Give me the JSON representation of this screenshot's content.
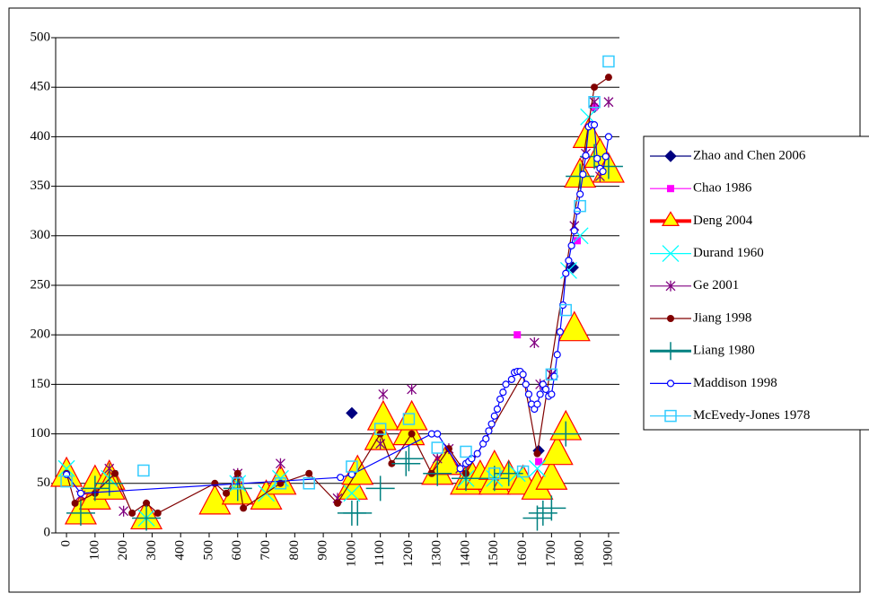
{
  "chart_data": {
    "type": "scatter",
    "xlim": [
      -38,
      1938
    ],
    "xticks": [
      0,
      100,
      200,
      300,
      400,
      500,
      600,
      700,
      800,
      900,
      1000,
      1100,
      1200,
      1300,
      1400,
      1500,
      1600,
      1700,
      1800,
      1900
    ],
    "ylim": [
      0,
      500
    ],
    "yticks": [
      0,
      50,
      100,
      150,
      200,
      250,
      300,
      350,
      400,
      450,
      500
    ],
    "grid": true,
    "legend": "right",
    "series": [
      {
        "name": "Zhao and Chen 2006",
        "color": "#000080",
        "marker": "diamond",
        "line": false,
        "x": [
          2,
          1000,
          1655,
          1775,
          1850
        ],
        "values": [
          60,
          121,
          83,
          268,
          430
        ]
      },
      {
        "name": "Chao 1986",
        "color": "#ff00ff",
        "marker": "square",
        "line": false,
        "x": [
          0,
          1580,
          1655,
          1790,
          1850
        ],
        "values": [
          59,
          200,
          72,
          295,
          430
        ]
      },
      {
        "name": "Deng 2004",
        "color": "#ff0000",
        "marker": "triangle",
        "line": false,
        "x": [
          0,
          50,
          100,
          100,
          150,
          150,
          280,
          520,
          600,
          700,
          750,
          1000,
          1020,
          1100,
          1110,
          1200,
          1210,
          1300,
          1330,
          1400,
          1420,
          1450,
          1500,
          1500,
          1550,
          1600,
          1650,
          1700,
          1720,
          1750,
          1780,
          1800,
          1830,
          1870,
          1900
        ],
        "values": [
          58,
          20,
          35,
          50,
          55,
          45,
          15,
          30,
          40,
          35,
          50,
          45,
          60,
          95,
          115,
          100,
          115,
          60,
          70,
          50,
          55,
          55,
          50,
          65,
          55,
          50,
          45,
          55,
          80,
          105,
          205,
          360,
          400,
          380,
          365
        ]
      },
      {
        "name": "Durand 1960",
        "color": "#00ffff",
        "marker": "x",
        "line": false,
        "x": [
          0,
          150,
          280,
          600,
          700,
          750,
          1000,
          1400,
          1500,
          1580,
          1650,
          1760,
          1800,
          1830
        ],
        "values": [
          65,
          55,
          15,
          50,
          40,
          55,
          40,
          55,
          55,
          60,
          65,
          265,
          300,
          420
        ]
      },
      {
        "name": "Ge 2001",
        "color": "#800080",
        "marker": "star",
        "line": false,
        "x": [
          50,
          150,
          200,
          600,
          750,
          950,
          1100,
          1110,
          1210,
          1300,
          1340,
          1380,
          1640,
          1660,
          1700,
          1780,
          1820,
          1850,
          1870,
          1900
        ],
        "values": [
          38,
          65,
          22,
          60,
          70,
          35,
          90,
          140,
          145,
          75,
          85,
          65,
          192,
          150,
          160,
          310,
          383,
          435,
          360,
          435
        ]
      },
      {
        "name": "Jiang 1998",
        "color": "#800000",
        "marker": "dot",
        "line": true,
        "x": [
          0,
          30,
          100,
          170,
          230,
          280,
          320,
          520,
          560,
          600,
          620,
          750,
          850,
          950,
          1100,
          1140,
          1210,
          1280,
          1340,
          1400,
          1600,
          1650,
          1850,
          1900
        ],
        "values": [
          60,
          30,
          40,
          60,
          20,
          30,
          20,
          50,
          40,
          60,
          25,
          50,
          60,
          30,
          100,
          70,
          100,
          60,
          85,
          60,
          160,
          80,
          450,
          460
        ]
      },
      {
        "name": "Liang 1980",
        "color": "#008080",
        "marker": "plus",
        "line": false,
        "x": [
          50,
          100,
          150,
          280,
          600,
          1000,
          1020,
          1100,
          1190,
          1200,
          1300,
          1400,
          1500,
          1550,
          1650,
          1670,
          1700,
          1750,
          1800,
          1850,
          1900
        ],
        "values": [
          20,
          45,
          50,
          15,
          45,
          20,
          20,
          45,
          70,
          75,
          60,
          55,
          55,
          60,
          15,
          20,
          25,
          100,
          360,
          380,
          370
        ]
      },
      {
        "name": "Maddison 1998",
        "color": "#0000ff",
        "marker": "circle",
        "line": true,
        "x": [
          0,
          50,
          960,
          1000,
          1280,
          1300,
          1380,
          1400,
          1410,
          1420,
          1440,
          1460,
          1470,
          1480,
          1490,
          1500,
          1510,
          1520,
          1530,
          1540,
          1560,
          1570,
          1580,
          1590,
          1600,
          1610,
          1620,
          1630,
          1640,
          1650,
          1660,
          1670,
          1680,
          1690,
          1700,
          1710,
          1720,
          1730,
          1740,
          1750,
          1760,
          1770,
          1780,
          1790,
          1800,
          1810,
          1820,
          1830,
          1840,
          1850,
          1860,
          1870,
          1880,
          1890,
          1900
        ],
        "values": [
          59,
          40,
          56,
          59,
          100,
          100,
          65,
          70,
          72,
          75,
          80,
          90,
          95,
          103,
          110,
          118,
          125,
          135,
          142,
          150,
          155,
          162,
          163,
          163,
          160,
          150,
          140,
          130,
          125,
          130,
          140,
          150,
          145,
          138,
          140,
          158,
          180,
          203,
          230,
          262,
          275,
          290,
          305,
          325,
          342,
          362,
          381,
          410,
          412,
          412,
          378,
          368,
          365,
          380,
          400
        ]
      },
      {
        "name": "McEvedy-Jones 1978",
        "color": "#33ccff",
        "marker": "square-open",
        "line": false,
        "x": [
          0,
          270,
          600,
          750,
          850,
          1000,
          1100,
          1200,
          1300,
          1400,
          1500,
          1600,
          1700,
          1750,
          1800,
          1850,
          1900
        ],
        "values": [
          52,
          63,
          50,
          50,
          50,
          67,
          105,
          115,
          86,
          82,
          60,
          62,
          160,
          225,
          330,
          435,
          476
        ]
      }
    ]
  }
}
